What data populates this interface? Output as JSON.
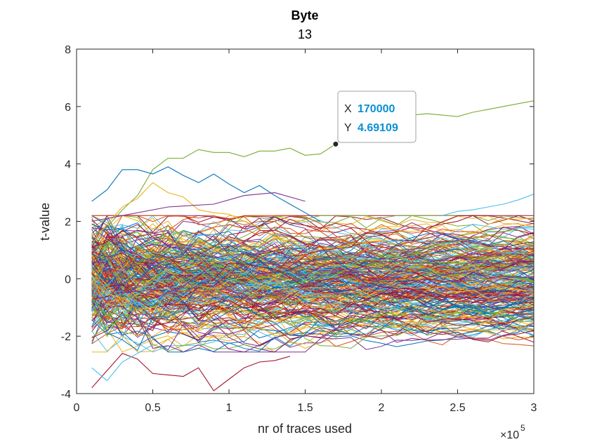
{
  "chart_data": {
    "type": "line",
    "title": "Byte",
    "subtitle": "13",
    "xlabel": "nr of traces used",
    "ylabel": "t-value",
    "x_exponent_label": "×10",
    "x_exponent_power": "5",
    "xlim": [
      0,
      300000
    ],
    "ylim": [
      -4,
      8
    ],
    "x_ticks": [
      0,
      50000,
      100000,
      150000,
      200000,
      250000,
      300000
    ],
    "x_tick_labels": [
      "0",
      "0.5",
      "1",
      "1.5",
      "2",
      "2.5",
      "3"
    ],
    "y_ticks": [
      -4,
      -2,
      0,
      2,
      4,
      6,
      8
    ],
    "y_tick_labels": [
      "-4",
      "-2",
      "0",
      "2",
      "4",
      "6",
      "8"
    ],
    "grid": false,
    "legend": "none",
    "x_start": 10000,
    "x_step": 10000,
    "palette": [
      "#0072BD",
      "#D95319",
      "#EDB120",
      "#7E2F8E",
      "#77AC30",
      "#4DBEEE",
      "#A2142F"
    ],
    "noise_series_count": 256,
    "highlighted_series": [
      {
        "color": "#77AC30",
        "x": [
          10000,
          20000,
          30000,
          40000,
          50000,
          60000,
          70000,
          80000,
          90000,
          100000,
          110000,
          120000,
          130000,
          140000,
          150000,
          160000,
          170000,
          180000,
          190000,
          200000,
          210000,
          220000,
          230000,
          240000,
          250000,
          260000,
          270000,
          280000,
          290000,
          300000
        ],
        "y": [
          1.5,
          1.8,
          2.4,
          2.9,
          3.8,
          4.2,
          4.2,
          4.5,
          4.4,
          4.4,
          4.25,
          4.45,
          4.45,
          4.55,
          4.3,
          4.35,
          4.69109,
          5.2,
          5.6,
          5.75,
          5.9,
          5.7,
          5.75,
          5.7,
          5.65,
          5.8,
          5.9,
          6.0,
          6.1,
          6.2
        ]
      },
      {
        "color": "#0072BD",
        "x": [
          10000,
          20000,
          30000,
          40000,
          50000,
          60000,
          70000,
          80000,
          90000,
          100000,
          110000,
          120000,
          130000,
          140000,
          150000,
          160000
        ],
        "y": [
          2.7,
          3.1,
          3.8,
          3.8,
          3.65,
          3.9,
          3.6,
          3.35,
          3.65,
          3.3,
          3.0,
          3.25,
          2.9,
          2.6,
          2.3,
          2.0
        ]
      },
      {
        "color": "#EDB120",
        "x": [
          10000,
          20000,
          30000,
          40000,
          50000,
          60000,
          70000,
          80000,
          90000,
          100000,
          110000,
          120000
        ],
        "y": [
          1.2,
          1.9,
          2.5,
          2.8,
          3.35,
          3.0,
          2.85,
          2.4,
          2.3,
          2.25,
          2.0,
          1.8
        ]
      },
      {
        "color": "#A2142F",
        "x": [
          10000,
          20000,
          30000,
          40000,
          50000,
          60000,
          70000,
          80000,
          90000,
          100000,
          110000,
          120000,
          130000,
          140000
        ],
        "y": [
          -3.8,
          -3.2,
          -2.6,
          -2.8,
          -3.3,
          -3.35,
          -3.4,
          -3.1,
          -3.9,
          -3.5,
          -3.1,
          -2.9,
          -2.85,
          -2.7
        ]
      },
      {
        "color": "#4DBEEE",
        "x": [
          10000,
          20000,
          30000,
          40000,
          50000
        ],
        "y": [
          -3.1,
          -3.55,
          -2.9,
          -2.6,
          -2.3
        ]
      },
      {
        "color": "#4DBEEE",
        "x": [
          240000,
          250000,
          260000,
          270000,
          280000,
          290000,
          300000
        ],
        "y": [
          2.2,
          2.35,
          2.4,
          2.5,
          2.6,
          2.75,
          2.95
        ]
      },
      {
        "color": "#7E2F8E",
        "x": [
          10000,
          30000,
          60000,
          90000,
          110000,
          130000,
          150000
        ],
        "y": [
          2.0,
          2.2,
          2.5,
          2.6,
          2.9,
          3.0,
          2.7
        ]
      }
    ],
    "datatip": {
      "x_key": "X",
      "x_value": "170000",
      "y_key": "Y",
      "y_value": "4.69109",
      "anchor_x": 170000,
      "anchor_y": 4.69109
    }
  }
}
